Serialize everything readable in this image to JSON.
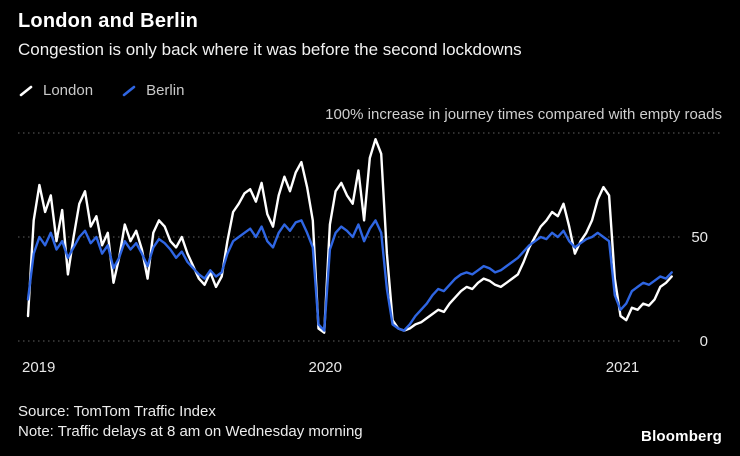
{
  "header": {
    "title": "London and Berlin",
    "subtitle": "Congestion is only back where it was before the second lockdowns"
  },
  "legend": [
    {
      "label": "London",
      "color": "#ffffff"
    },
    {
      "label": "Berlin",
      "color": "#2f66e3"
    }
  ],
  "footer": {
    "source": "Source: TomTom Traffic Index",
    "note": "Note: Traffic delays at 8 am on Wednesday morning",
    "brand": "Bloomberg"
  },
  "colors": {
    "background": "#000000",
    "grid": "#606060",
    "london": "#ffffff",
    "berlin": "#2f66e3"
  },
  "chart_data": {
    "type": "line",
    "title": "London and Berlin",
    "subtitle": "Congestion is only back where it was before the second lockdowns",
    "annotation": "100% increase in journey times compared with empty roads",
    "cadence": "weekly (Wednesday 8 am), starting early January 2019",
    "x_domain": [
      2019,
      2021.18
    ],
    "x_ticks": [
      {
        "year": 2019,
        "label": "2019"
      },
      {
        "year": 2020,
        "label": "2020"
      },
      {
        "year": 2021,
        "label": "2021"
      }
    ],
    "ylim": [
      0,
      100
    ],
    "ylabel": "% increase in journey times compared with empty roads",
    "y_ticks": [
      0,
      50,
      100
    ],
    "y_tick_labels": [
      {
        "value": 50,
        "label": "50"
      },
      {
        "value": 0,
        "label": "0"
      }
    ],
    "grid": "dotted horizontal lines at 0, 50 and 100",
    "legend_position": "top-left",
    "series": [
      {
        "name": "London",
        "color": "#ffffff",
        "values": [
          12,
          58,
          75,
          62,
          70,
          48,
          63,
          32,
          50,
          66,
          72,
          55,
          60,
          46,
          52,
          28,
          40,
          56,
          48,
          53,
          44,
          30,
          52,
          58,
          55,
          48,
          45,
          50,
          42,
          36,
          30,
          27,
          33,
          26,
          31,
          48,
          62,
          66,
          71,
          73,
          67,
          76,
          61,
          55,
          70,
          79,
          72,
          81,
          86,
          74,
          58,
          6,
          4,
          56,
          72,
          76,
          70,
          66,
          82,
          58,
          88,
          97,
          90,
          42,
          10,
          6,
          5,
          6,
          8,
          9,
          11,
          13,
          15,
          14,
          18,
          21,
          24,
          26,
          25,
          28,
          30,
          29,
          27,
          26,
          28,
          30,
          32,
          38,
          45,
          50,
          55,
          58,
          62,
          60,
          66,
          55,
          42,
          48,
          52,
          58,
          68,
          74,
          70,
          30,
          12,
          10,
          16,
          15,
          18,
          17,
          20,
          26,
          28,
          31
        ]
      },
      {
        "name": "Berlin",
        "color": "#2f66e3",
        "values": [
          20,
          42,
          50,
          46,
          52,
          44,
          48,
          40,
          45,
          50,
          53,
          47,
          50,
          42,
          46,
          35,
          40,
          48,
          44,
          47,
          42,
          36,
          45,
          49,
          47,
          44,
          40,
          43,
          38,
          35,
          32,
          30,
          34,
          31,
          33,
          42,
          48,
          50,
          52,
          54,
          50,
          55,
          48,
          45,
          52,
          56,
          53,
          57,
          58,
          52,
          45,
          8,
          5,
          44,
          52,
          55,
          53,
          50,
          56,
          48,
          54,
          58,
          52,
          25,
          8,
          6,
          5,
          8,
          12,
          15,
          18,
          22,
          25,
          24,
          27,
          30,
          32,
          33,
          32,
          34,
          36,
          35,
          33,
          34,
          36,
          38,
          40,
          43,
          46,
          48,
          50,
          49,
          52,
          50,
          53,
          48,
          45,
          47,
          49,
          50,
          52,
          50,
          48,
          22,
          15,
          18,
          24,
          26,
          28,
          27,
          29,
          31,
          30,
          33
        ]
      }
    ]
  }
}
